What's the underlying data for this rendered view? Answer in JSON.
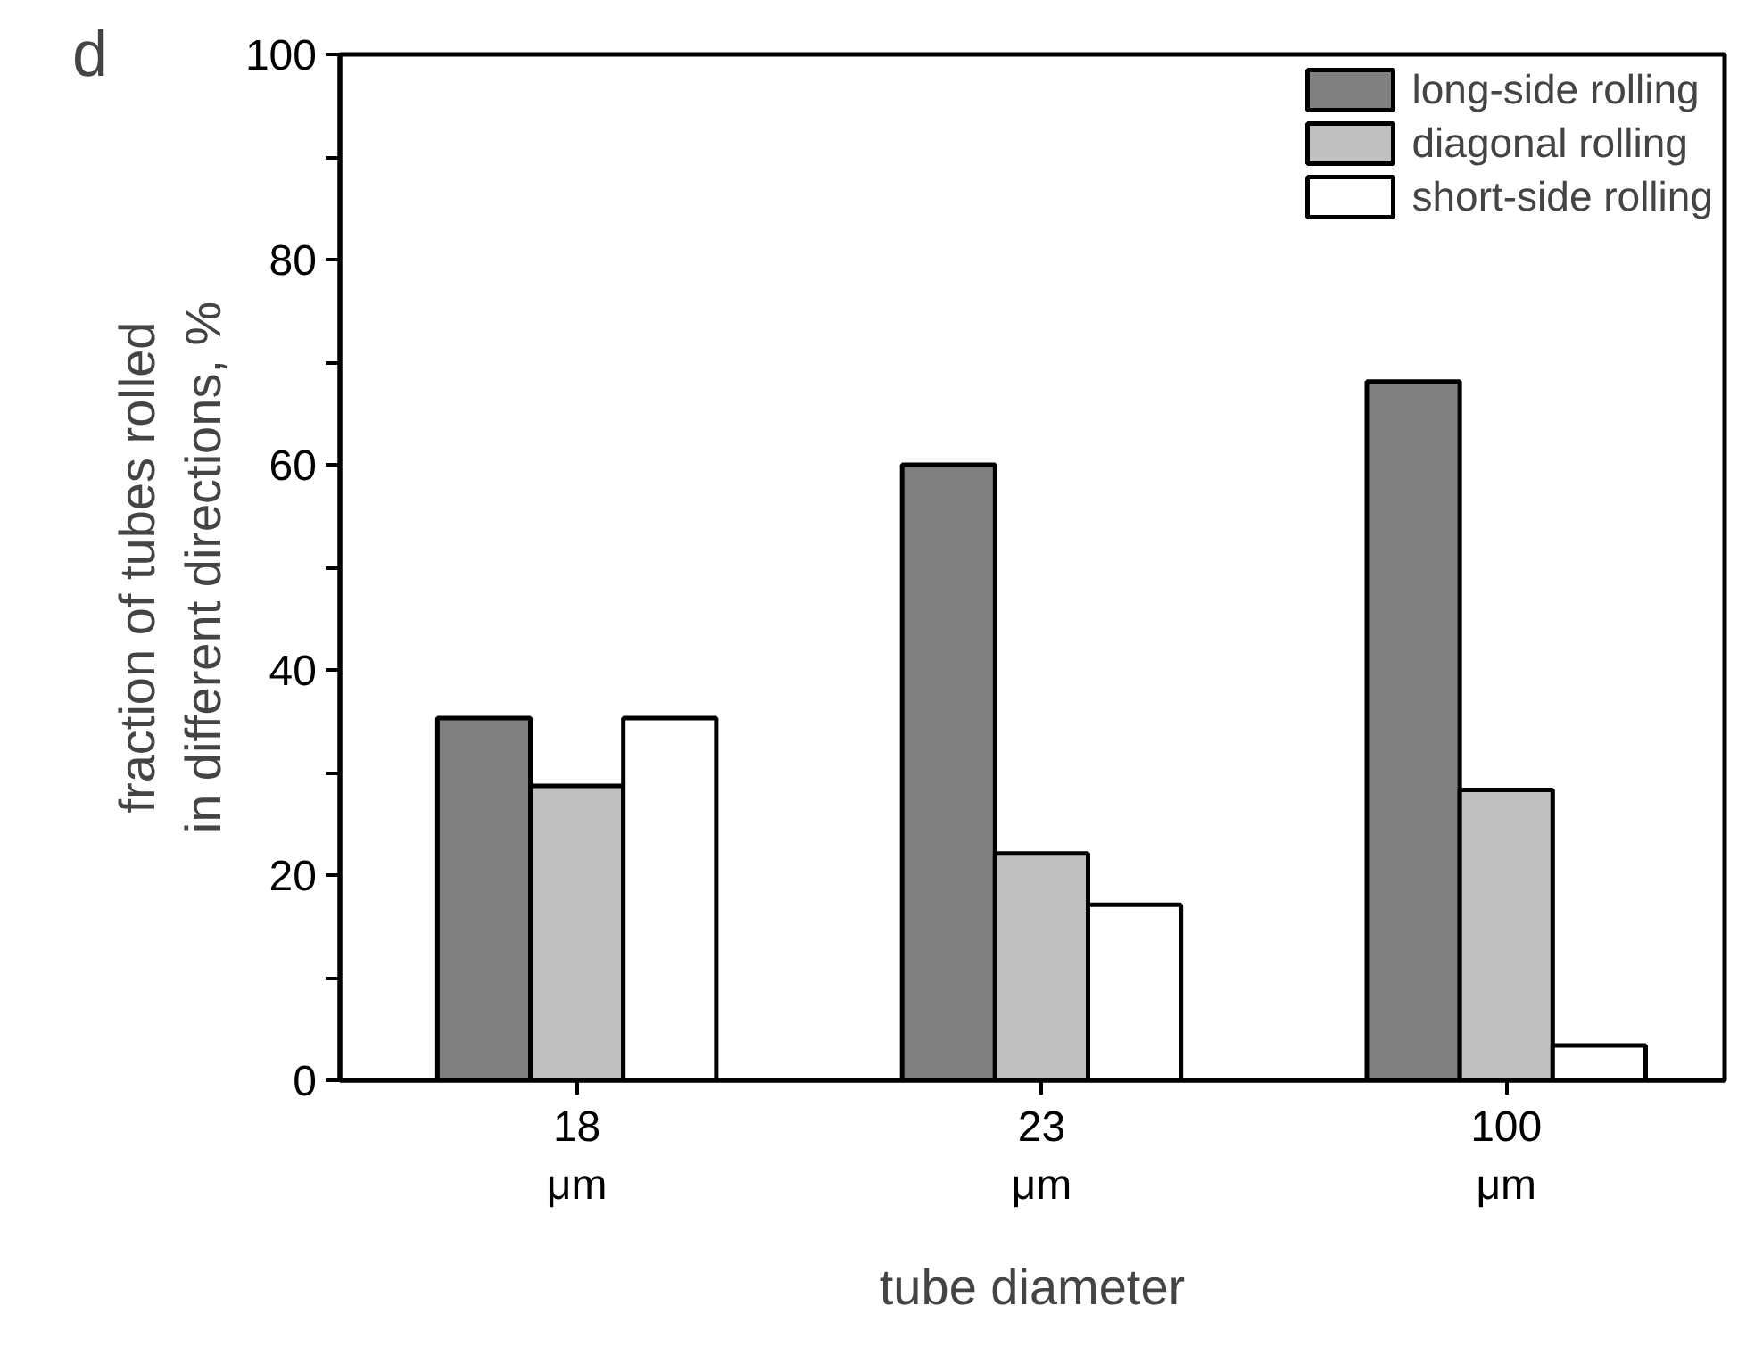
{
  "chart_data": {
    "type": "bar",
    "xlabel": "tube diameter",
    "ylabel": "fraction of tubes rolled\nin different directions, %",
    "categories": [
      "18\nμm",
      "23\nμm",
      "100\nμm"
    ],
    "series": [
      {
        "name": "long-side rolling",
        "color": "#808080",
        "values": [
          35.3,
          60,
          68.1
        ]
      },
      {
        "name": "diagonal rolling",
        "color": "#c0c0c0",
        "values": [
          28.7,
          22.1,
          28.3
        ]
      },
      {
        "name": "short-side rolling",
        "color": "#ffffff",
        "values": [
          35.3,
          17.1,
          3.4
        ]
      }
    ],
    "ylim": [
      0,
      100
    ],
    "yticks": [
      0,
      {
        "value": 10,
        "label": null
      },
      20,
      {
        "value": 30,
        "label": null
      },
      40,
      {
        "value": 50,
        "label": null
      },
      60,
      {
        "value": 70,
        "label": null
      },
      80,
      {
        "value": 90,
        "label": null
      },
      100
    ],
    "legend": "top right",
    "grid": false,
    "annotations": [
      "d"
    ]
  }
}
